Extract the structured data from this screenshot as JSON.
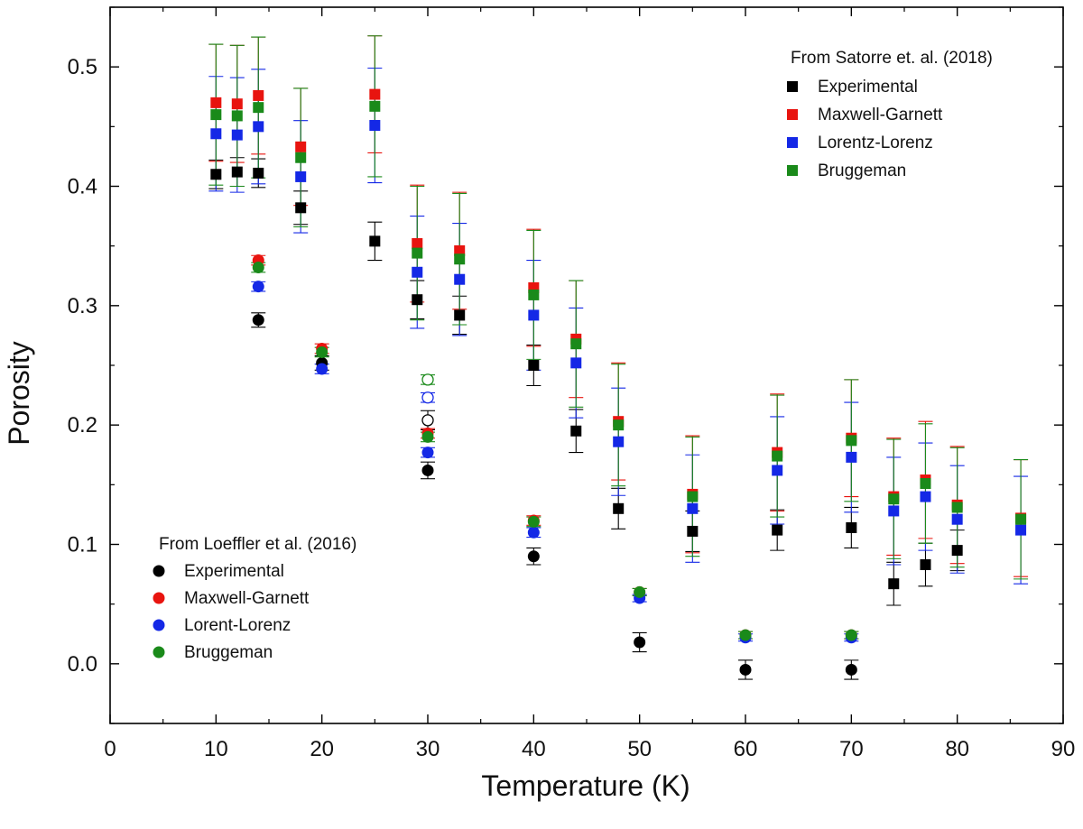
{
  "chart_data": {
    "type": "scatter",
    "title": "",
    "xlabel": "Temperature (K)",
    "ylabel": "Porosity",
    "xlim": [
      0,
      90
    ],
    "ylim": [
      -0.05,
      0.55
    ],
    "xticks": [
      0,
      10,
      20,
      30,
      40,
      50,
      60,
      70,
      80,
      90
    ],
    "yticks": [
      0.0,
      0.1,
      0.2,
      0.3,
      0.4,
      0.5
    ],
    "xtick_labels": [
      "0",
      "10",
      "20",
      "30",
      "40",
      "50",
      "60",
      "70",
      "80",
      "90"
    ],
    "ytick_labels": [
      "0.0",
      "0.1",
      "0.2",
      "0.3",
      "0.4",
      "0.5"
    ],
    "grid": false,
    "colors": {
      "experimental": "#000000",
      "maxwell_garnett": "#e8140f",
      "lorentz_lorenz": "#1428e6",
      "bruggeman": "#1a8a1a"
    },
    "groups": [
      {
        "name": "From Satorre et. al. (2018)",
        "marker": "square",
        "legend_position": "top-right",
        "series": [
          {
            "name": "Experimental",
            "color_key": "experimental",
            "x": [
              10,
              12,
              14,
              18,
              25,
              29,
              33,
              40,
              44,
              48,
              55,
              63,
              70,
              74,
              77,
              80
            ],
            "y": [
              0.41,
              0.412,
              0.411,
              0.382,
              0.354,
              0.305,
              0.292,
              0.25,
              0.195,
              0.13,
              0.111,
              0.112,
              0.114,
              0.067,
              0.083,
              0.095
            ],
            "err": [
              0.012,
              0.012,
              0.012,
              0.014,
              0.016,
              0.016,
              0.016,
              0.017,
              0.018,
              0.017,
              0.017,
              0.017,
              0.017,
              0.018,
              0.018,
              0.017
            ]
          },
          {
            "name": "Maxwell-Garnett",
            "color_key": "maxwell_garnett",
            "x": [
              10,
              12,
              14,
              18,
              25,
              29,
              33,
              40,
              44,
              48,
              55,
              63,
              70,
              74,
              77,
              80,
              86
            ],
            "y": [
              0.47,
              0.469,
              0.476,
              0.433,
              0.477,
              0.352,
              0.346,
              0.315,
              0.272,
              0.203,
              0.142,
              0.177,
              0.189,
              0.14,
              0.154,
              0.133,
              0.122
            ],
            "err": [
              0.049,
              0.049,
              0.049,
              0.049,
              0.049,
              0.049,
              0.049,
              0.049,
              0.049,
              0.049,
              0.049,
              0.049,
              0.049,
              0.049,
              0.049,
              0.049,
              0.049
            ]
          },
          {
            "name": "Lorentz-Lorenz",
            "color_key": "lorentz_lorenz",
            "x": [
              10,
              12,
              14,
              18,
              25,
              29,
              33,
              40,
              44,
              48,
              55,
              63,
              70,
              74,
              77,
              80,
              86
            ],
            "y": [
              0.444,
              0.443,
              0.45,
              0.408,
              0.451,
              0.328,
              0.322,
              0.292,
              0.252,
              0.186,
              0.13,
              0.162,
              0.173,
              0.128,
              0.14,
              0.121,
              0.112
            ],
            "err": [
              0.048,
              0.048,
              0.048,
              0.047,
              0.048,
              0.047,
              0.047,
              0.046,
              0.046,
              0.045,
              0.045,
              0.045,
              0.046,
              0.045,
              0.045,
              0.045,
              0.045
            ]
          },
          {
            "name": "Bruggeman",
            "color_key": "bruggeman",
            "x": [
              10,
              12,
              14,
              18,
              25,
              29,
              33,
              40,
              44,
              48,
              55,
              63,
              70,
              74,
              77,
              80,
              86
            ],
            "y": [
              0.46,
              0.459,
              0.466,
              0.424,
              0.467,
              0.344,
              0.339,
              0.309,
              0.268,
              0.2,
              0.14,
              0.174,
              0.187,
              0.138,
              0.151,
              0.131,
              0.121
            ],
            "err": [
              0.059,
              0.059,
              0.059,
              0.058,
              0.059,
              0.056,
              0.055,
              0.054,
              0.053,
              0.051,
              0.05,
              0.051,
              0.051,
              0.05,
              0.05,
              0.05,
              0.05
            ]
          }
        ]
      },
      {
        "name": "From Loeffler et al. (2016)",
        "marker": "circle",
        "legend_position": "bottom-left",
        "series": [
          {
            "name": "Experimental",
            "color_key": "experimental",
            "x": [
              14,
              20,
              30,
              40,
              50,
              60,
              70
            ],
            "y": [
              0.288,
              0.252,
              0.162,
              0.09,
              0.018,
              -0.005,
              -0.005
            ],
            "err": [
              0.006,
              0.006,
              0.007,
              0.007,
              0.008,
              0.008,
              0.008
            ]
          },
          {
            "name": "Maxwell-Garnett",
            "color_key": "maxwell_garnett",
            "x": [
              14,
              20,
              30,
              40,
              50,
              60,
              70
            ],
            "y": [
              0.338,
              0.264,
              0.193,
              0.12,
              0.06,
              0.024,
              0.024
            ],
            "err": [
              0.004,
              0.004,
              0.004,
              0.004,
              0.003,
              0.003,
              0.003
            ]
          },
          {
            "name": "Lorent-Lorenz",
            "color_key": "lorentz_lorenz",
            "x": [
              14,
              20,
              30,
              40,
              50,
              60,
              70
            ],
            "y": [
              0.316,
              0.247,
              0.177,
              0.11,
              0.055,
              0.022,
              0.022
            ],
            "err": [
              0.004,
              0.004,
              0.004,
              0.004,
              0.003,
              0.003,
              0.003
            ]
          },
          {
            "name": "Bruggeman",
            "color_key": "bruggeman",
            "x": [
              14,
              20,
              30,
              40,
              50,
              60,
              70
            ],
            "y": [
              0.332,
              0.261,
              0.19,
              0.119,
              0.06,
              0.024,
              0.024
            ],
            "err": [
              0.004,
              0.004,
              0.004,
              0.004,
              0.003,
              0.003,
              0.003
            ]
          }
        ]
      }
    ],
    "open_circles": [
      {
        "name": "Experimental (open)",
        "x": 30,
        "y": 0.204,
        "err": 0.008,
        "color_key": "experimental"
      },
      {
        "name": "Lorent-Lorenz (open)",
        "x": 30,
        "y": 0.223,
        "err": 0.004,
        "color_key": "lorentz_lorenz"
      },
      {
        "name": "Bruggeman (open)",
        "x": 30,
        "y": 0.238,
        "err": 0.004,
        "color_key": "bruggeman"
      }
    ]
  }
}
